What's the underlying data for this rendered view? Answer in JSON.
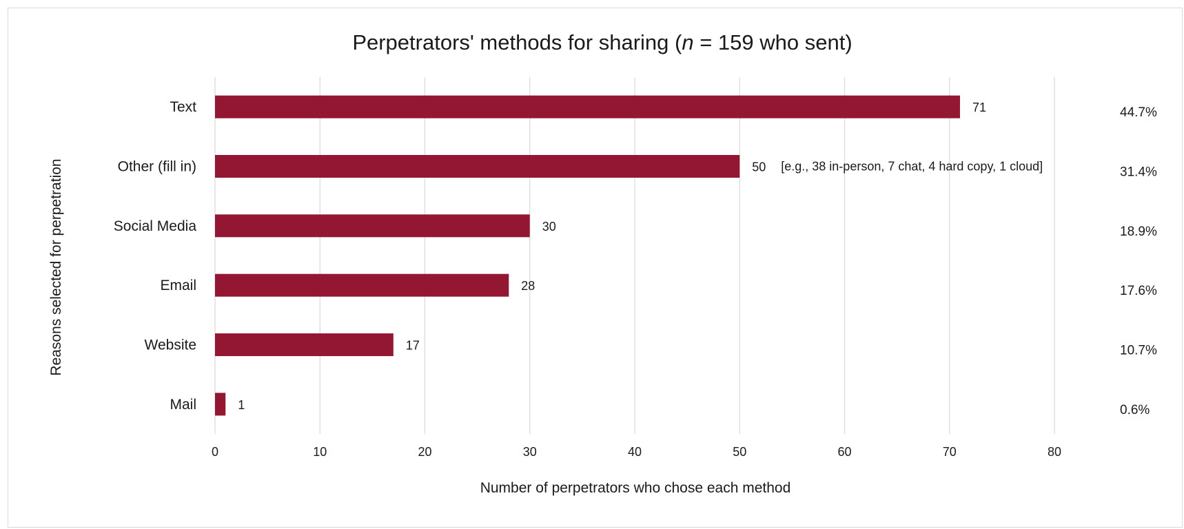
{
  "chart_data": {
    "type": "bar",
    "orientation": "horizontal",
    "title": {
      "prefix": "Perpetrators' methods for sharing (",
      "italic": "n",
      "suffix": " = 159 who sent)"
    },
    "xlabel": "Number of perpetrators who chose each method",
    "ylabel": "Reasons selected for perpetration",
    "categories": [
      "Text",
      "Other (fill in)",
      "Social Media",
      "Email",
      "Website",
      "Mail"
    ],
    "values": [
      71,
      50,
      30,
      28,
      17,
      1
    ],
    "percentages": [
      "44.7%",
      "31.4%",
      "18.9%",
      "17.6%",
      "10.7%",
      "0.6%"
    ],
    "annotations": [
      {
        "category": "Other (fill in)",
        "text": "[e.g., 38 in-person, 7 chat, 4 hard copy, 1 cloud]"
      }
    ],
    "xlim": [
      0,
      80
    ],
    "xticks": [
      "0",
      "10",
      "20",
      "30",
      "40",
      "50",
      "60",
      "70",
      "80"
    ],
    "grid": true,
    "legend": "none",
    "bar_color": "#931632",
    "grid_color": "#d9d9d9"
  }
}
